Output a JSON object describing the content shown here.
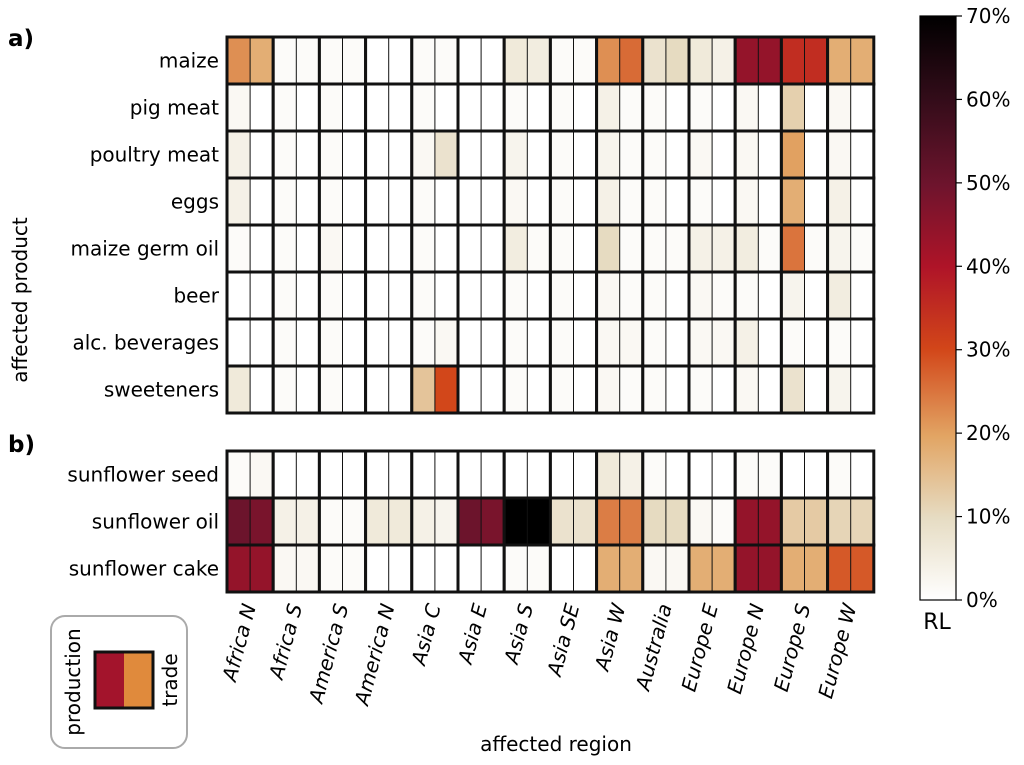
{
  "panel_labels": {
    "a": "a)",
    "b": "b)"
  },
  "labels": {
    "ylabel": "affected product",
    "xlabel": "affected region",
    "colorbar_label": "RL",
    "legend_production": "production",
    "legend_trade": "trade"
  },
  "colorbar_ticks": [
    "0%",
    "10%",
    "20%",
    "30%",
    "40%",
    "50%",
    "60%",
    "70%"
  ],
  "colors": {
    "cell_border": "#111111",
    "legend_production": "#a3142c",
    "legend_trade": "#e08a3c",
    "legend_box_border": "#aaaaaa"
  },
  "chart_data": {
    "type": "heatmap",
    "value_unit": "%",
    "colorbar_range": [
      0,
      70
    ],
    "colormap": "light-to-dark (white, tan, orange, red, dark crimson, black)",
    "regions": [
      "Africa N",
      "Africa S",
      "America S",
      "America N",
      "Asia C",
      "Asia E",
      "Asia S",
      "Asia SE",
      "Asia W",
      "Australia",
      "Europe E",
      "Europe N",
      "Europe S",
      "Europe W"
    ],
    "cell_split": [
      "production",
      "trade"
    ],
    "panels": [
      {
        "label": "a)",
        "rows": [
          {
            "product": "maize",
            "production": [
              22,
              1,
              1,
              0,
              1,
              0,
              6,
              1,
              22,
              8,
              6,
              44,
              35,
              18
            ],
            "trade": [
              18,
              1,
              1,
              0,
              1,
              0,
              5,
              1,
              26,
              10,
              4,
              44,
              35,
              18
            ]
          },
          {
            "product": "pig meat",
            "production": [
              2,
              1,
              1,
              0,
              1,
              0,
              1,
              1,
              4,
              1,
              1,
              2,
              12,
              2
            ],
            "trade": [
              0,
              0,
              0,
              0,
              0,
              0,
              0,
              0,
              1,
              0,
              0,
              0,
              0,
              0
            ]
          },
          {
            "product": "poultry meat",
            "production": [
              4,
              1,
              1,
              0,
              2,
              0,
              3,
              1,
              3,
              1,
              2,
              2,
              20,
              2
            ],
            "trade": [
              0,
              0,
              0,
              0,
              8,
              0,
              0,
              0,
              1,
              0,
              0,
              0,
              0,
              0
            ]
          },
          {
            "product": "eggs",
            "production": [
              4,
              1,
              1,
              0,
              1,
              0,
              2,
              1,
              4,
              1,
              1,
              2,
              18,
              4
            ],
            "trade": [
              0,
              0,
              0,
              0,
              0,
              0,
              0,
              0,
              1,
              0,
              0,
              0,
              0,
              0
            ]
          },
          {
            "product": "maize germ oil",
            "production": [
              1,
              1,
              2,
              0,
              1,
              0,
              5,
              1,
              10,
              1,
              4,
              5,
              25,
              3
            ],
            "trade": [
              0,
              0,
              0,
              0,
              0,
              0,
              1,
              0,
              1,
              1,
              4,
              1,
              1,
              1
            ]
          },
          {
            "product": "beer",
            "production": [
              0,
              1,
              1,
              0,
              1,
              0,
              1,
              1,
              2,
              1,
              2,
              1,
              3,
              5
            ],
            "trade": [
              0,
              0,
              0,
              0,
              0,
              0,
              0,
              0,
              1,
              0,
              1,
              0,
              0,
              0
            ]
          },
          {
            "product": "alc. beverages",
            "production": [
              0,
              1,
              1,
              0,
              1,
              0,
              1,
              1,
              2,
              1,
              2,
              4,
              1,
              1
            ],
            "trade": [
              0,
              0,
              0,
              0,
              2,
              0,
              0,
              0,
              2,
              0,
              2,
              0,
              0,
              0
            ]
          },
          {
            "product": "sweeteners",
            "production": [
              6,
              1,
              1,
              0,
              14,
              0,
              1,
              1,
              2,
              1,
              1,
              2,
              8,
              3
            ],
            "trade": [
              0,
              0,
              0,
              0,
              30,
              0,
              0,
              0,
              1,
              0,
              0,
              0,
              0,
              0
            ]
          }
        ]
      },
      {
        "label": "b)",
        "rows": [
          {
            "product": "sunflower seed",
            "production": [
              1,
              0,
              0,
              0,
              0,
              0,
              0,
              0,
              6,
              1,
              0,
              1,
              0,
              1
            ],
            "trade": [
              2,
              0,
              0,
              0,
              0,
              0,
              0,
              0,
              4,
              0,
              0,
              1,
              0,
              0
            ]
          },
          {
            "product": "sunflower oil",
            "production": [
              50,
              4,
              1,
              6,
              4,
              50,
              70,
              8,
              24,
              10,
              2,
              44,
              13,
              11
            ],
            "trade": [
              48,
              4,
              1,
              6,
              3,
              48,
              70,
              8,
              24,
              10,
              1,
              44,
              13,
              11
            ]
          },
          {
            "product": "sunflower cake",
            "production": [
              44,
              2,
              1,
              0,
              0,
              0,
              1,
              0,
              18,
              2,
              18,
              44,
              18,
              28
            ],
            "trade": [
              44,
              2,
              1,
              0,
              0,
              0,
              1,
              0,
              18,
              2,
              18,
              44,
              18,
              28
            ]
          }
        ]
      }
    ]
  }
}
